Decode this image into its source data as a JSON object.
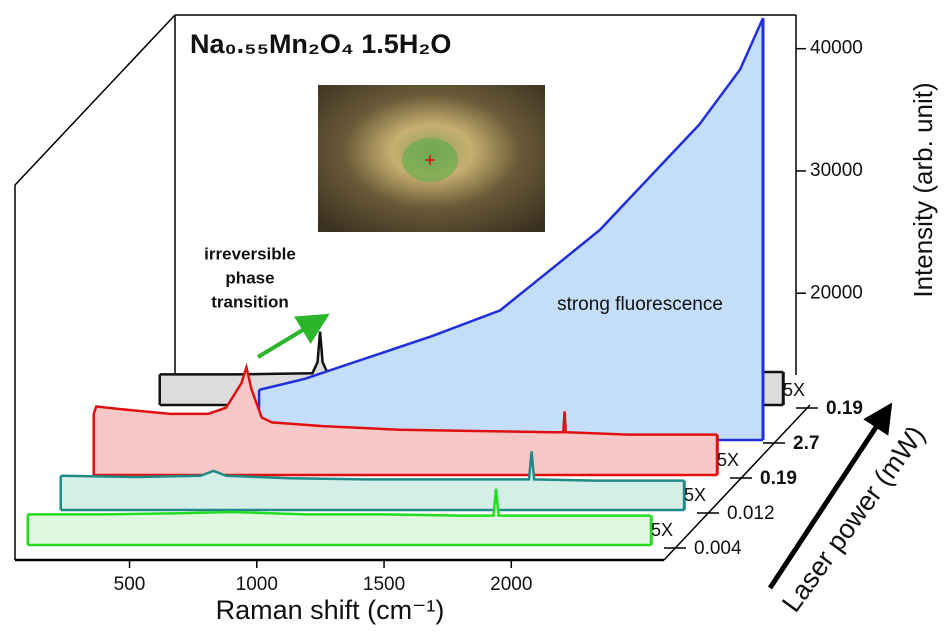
{
  "chart_data": {
    "type": "waterfall",
    "title": "Na₀.₅₅Mn₂O₄ 1.5H₂O",
    "xlabel": "Raman shift (cm⁻¹)",
    "ylabel": "Intensity (arb. unit)",
    "power_label": "Laser power (mW)",
    "xlim": [
      50,
      2600
    ],
    "xticks": [
      500,
      1000,
      1500,
      2000
    ],
    "ylim": [
      8000,
      43000
    ],
    "yticks": [
      20000,
      30000,
      40000
    ],
    "annotations": [
      {
        "lines": [
          "irreversible",
          "phase",
          "transition"
        ]
      },
      {
        "lines": [
          "strong fluorescence"
        ]
      }
    ],
    "series": [
      {
        "name": "0.19",
        "color": "#111111",
        "fill": "#dcdcdc",
        "bold": true,
        "scale_label": "5X",
        "x": [
          100,
          400,
          700,
          720,
          730,
          740,
          760,
          1000,
          1500,
          2000,
          2550
        ],
        "values": [
          10500,
          10500,
          10600,
          11500,
          14000,
          11500,
          10600,
          10600,
          10600,
          10700,
          10700
        ]
      },
      {
        "name": "2.7",
        "color": "#1f2fe0",
        "fill": "#c4defa",
        "bold": true,
        "x": [
          620,
          800,
          1000,
          1300,
          1567,
          1800,
          1960,
          2200,
          2350,
          2510,
          2600
        ],
        "values": [
          12100,
          13000,
          14400,
          16500,
          18600,
          22500,
          25200,
          30500,
          33800,
          38300,
          42500
        ]
      },
      {
        "name": "0.19",
        "color": "#e01010",
        "fill": "#f8c8c8",
        "bold": true,
        "scale_label": "5X",
        "x": [
          100,
          110,
          200,
          400,
          550,
          620,
          680,
          700,
          720,
          760,
          800,
          1000,
          1300,
          1600,
          1900,
          1945,
          1950,
          1955,
          2200,
          2550
        ],
        "values": [
          13000,
          13600,
          13400,
          13000,
          13000,
          13500,
          15500,
          16800,
          15000,
          12700,
          12300,
          12000,
          11700,
          11600,
          11500,
          11500,
          13200,
          11500,
          11300,
          11300
        ]
      },
      {
        "name": "0.012",
        "color": "#1f8a86",
        "fill": "#d3efe8",
        "bold": false,
        "scale_label": "5X",
        "x": [
          100,
          400,
          650,
          700,
          750,
          1000,
          1300,
          1600,
          1940,
          1950,
          1960,
          2200,
          2550
        ],
        "values": [
          10800,
          10700,
          10800,
          11200,
          10800,
          10600,
          10500,
          10500,
          10500,
          12800,
          10500,
          10400,
          10400
        ]
      },
      {
        "name": "0.004",
        "color": "#22dd22",
        "fill": "#e0f8e0",
        "bold": false,
        "scale_label": "5X",
        "x": [
          100,
          400,
          700,
          900,
          1200,
          1500,
          1800,
          1930,
          1940,
          1950,
          2200,
          2550
        ],
        "values": [
          10500,
          10500,
          10600,
          10700,
          10500,
          10500,
          10400,
          10400,
          12600,
          10400,
          10400,
          10400
        ]
      }
    ]
  }
}
